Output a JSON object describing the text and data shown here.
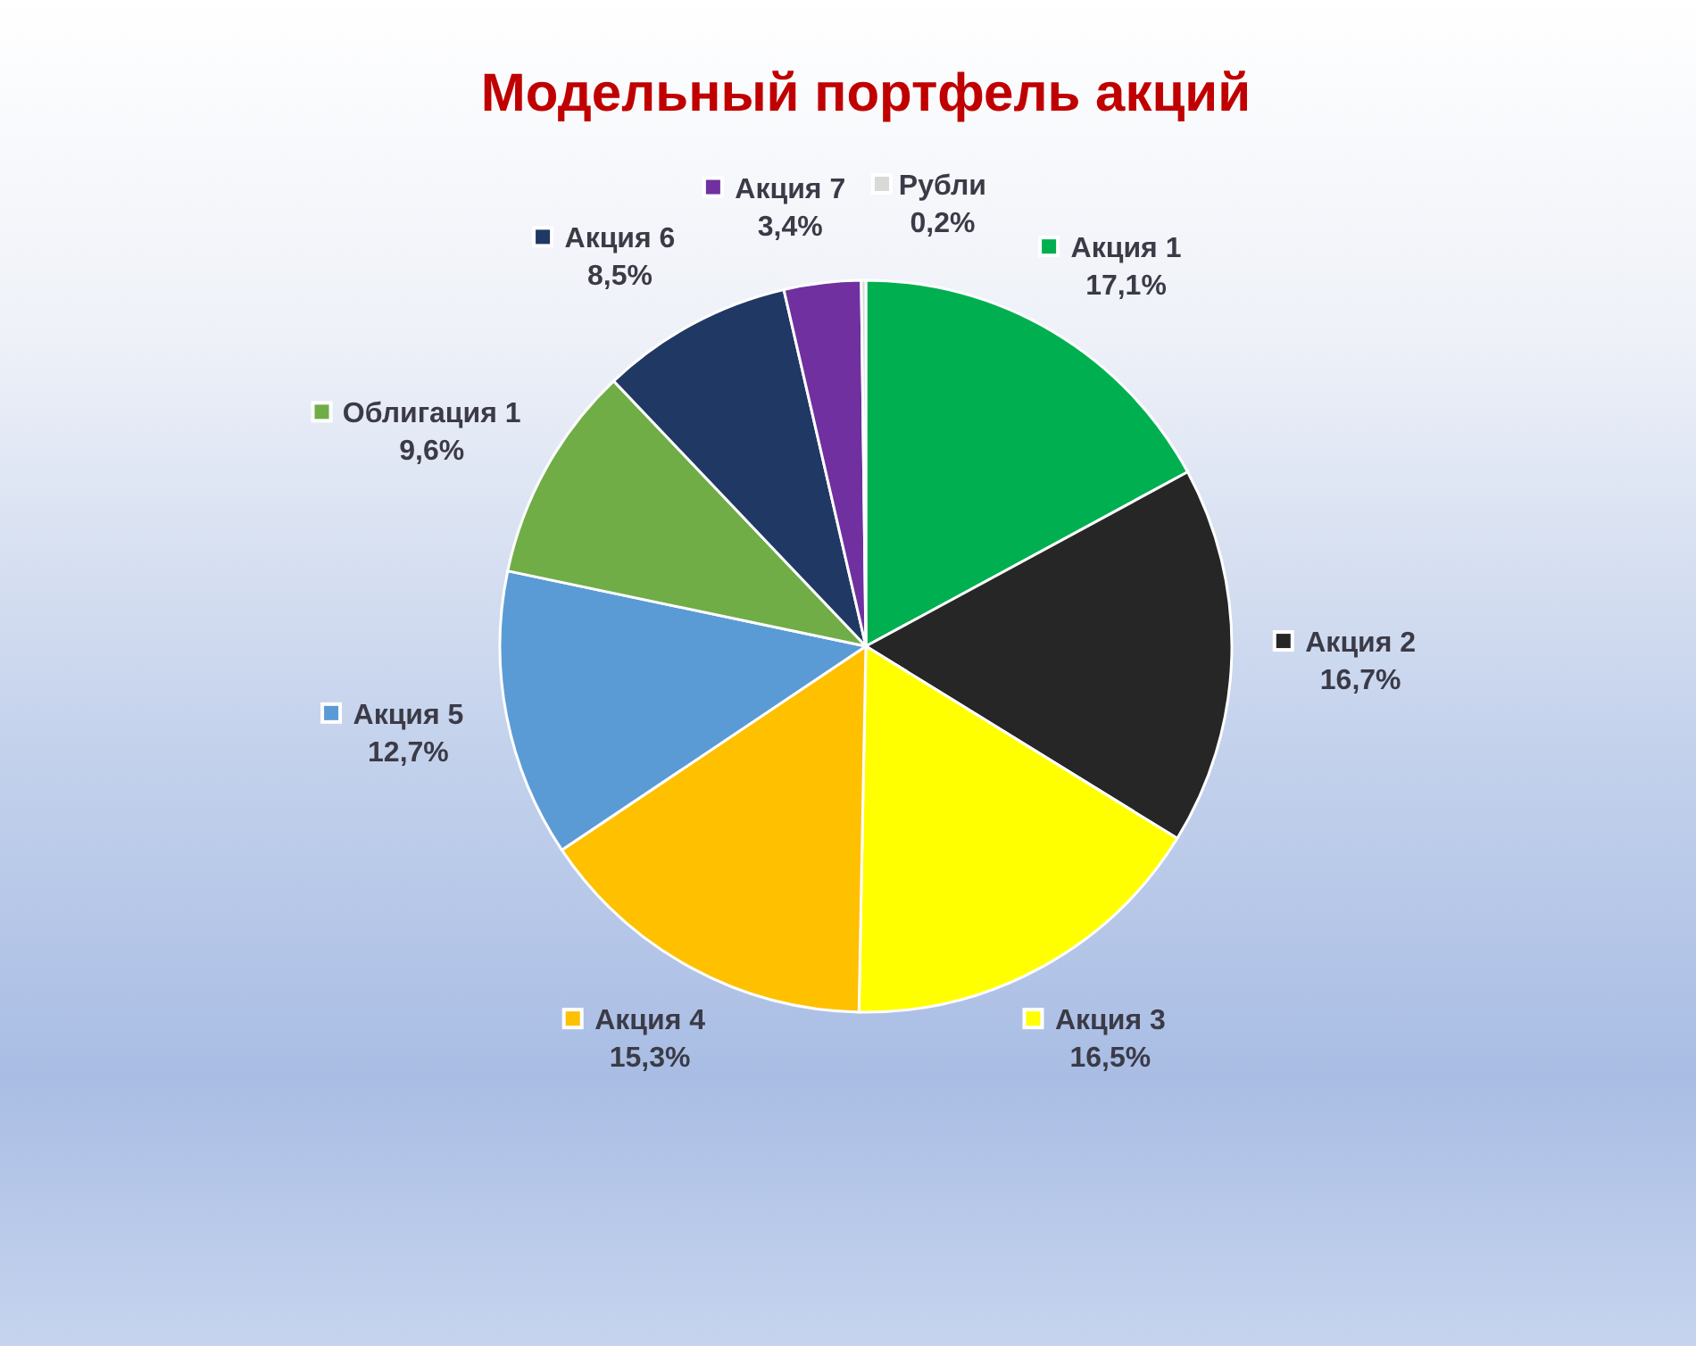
{
  "chart_data": {
    "type": "pie",
    "title": "Модельный портфель акций",
    "categories": [
      "Акция 1",
      "Акция 2",
      "Акция 3",
      "Акция 4",
      "Акция 5",
      "Облигация 1",
      "Акция 6",
      "Акция 7",
      "Рубли"
    ],
    "values": [
      17.1,
      16.7,
      16.5,
      15.3,
      12.7,
      9.6,
      8.5,
      3.4,
      0.2
    ],
    "colors": [
      "#00b050",
      "#262626",
      "#ffff00",
      "#ffc000",
      "#5b9bd5",
      "#70ad47",
      "#203864",
      "#7030a0",
      "#d9d9d9"
    ],
    "value_labels": [
      "17,1%",
      "16,7%",
      "16,5%",
      "15,3%",
      "12,7%",
      "9,6%",
      "8,5%",
      "3,4%",
      "0,2%"
    ],
    "legend": true
  }
}
